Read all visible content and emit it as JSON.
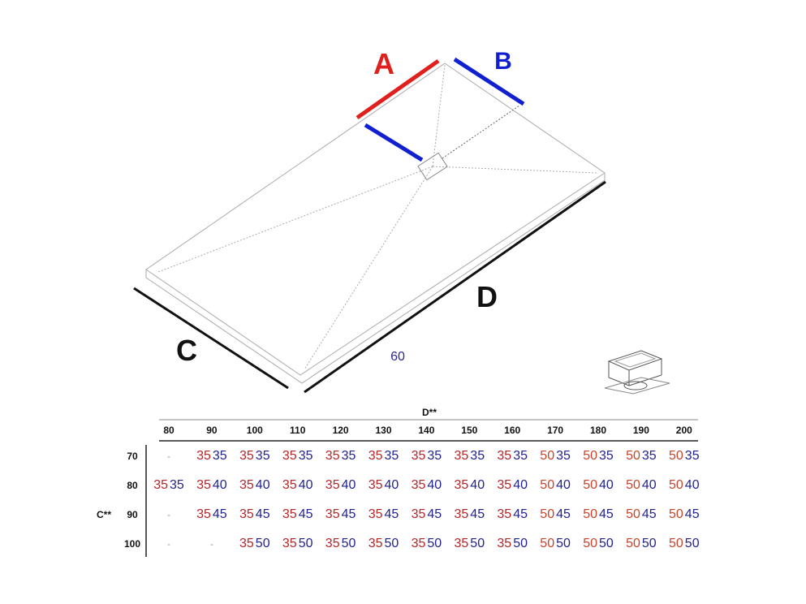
{
  "diagram": {
    "labels": {
      "a": "A",
      "b": "B",
      "c": "C",
      "d": "D"
    },
    "note": "60",
    "colors": {
      "a": "#e0201c",
      "b": "#1020d0",
      "c": "#111111",
      "d": "#111111",
      "note": "#2a2a8a"
    }
  },
  "table": {
    "column_header_title": "D**",
    "row_header_title": "C**",
    "columns": [
      "80",
      "90",
      "100",
      "110",
      "120",
      "130",
      "140",
      "150",
      "160",
      "170",
      "180",
      "190",
      "200"
    ],
    "rows": [
      {
        "c": "70",
        "cells": [
          null,
          [
            "35",
            "35"
          ],
          [
            "35",
            "35"
          ],
          [
            "35",
            "35"
          ],
          [
            "35",
            "35"
          ],
          [
            "35",
            "35"
          ],
          [
            "35",
            "35"
          ],
          [
            "35",
            "35"
          ],
          [
            "35",
            "35"
          ],
          [
            "50",
            "35"
          ],
          [
            "50",
            "35"
          ],
          [
            "50",
            "35"
          ],
          [
            "50",
            "35"
          ]
        ]
      },
      {
        "c": "80",
        "cells": [
          [
            "35",
            "35"
          ],
          [
            "35",
            "40"
          ],
          [
            "35",
            "40"
          ],
          [
            "35",
            "40"
          ],
          [
            "35",
            "40"
          ],
          [
            "35",
            "40"
          ],
          [
            "35",
            "40"
          ],
          [
            "35",
            "40"
          ],
          [
            "35",
            "40"
          ],
          [
            "50",
            "40"
          ],
          [
            "50",
            "40"
          ],
          [
            "50",
            "40"
          ],
          [
            "50",
            "40"
          ]
        ]
      },
      {
        "c": "90",
        "cells": [
          null,
          [
            "35",
            "45"
          ],
          [
            "35",
            "45"
          ],
          [
            "35",
            "45"
          ],
          [
            "35",
            "45"
          ],
          [
            "35",
            "45"
          ],
          [
            "35",
            "45"
          ],
          [
            "35",
            "45"
          ],
          [
            "35",
            "45"
          ],
          [
            "50",
            "45"
          ],
          [
            "50",
            "45"
          ],
          [
            "50",
            "45"
          ],
          [
            "50",
            "45"
          ]
        ]
      },
      {
        "c": "100",
        "cells": [
          null,
          null,
          [
            "35",
            "50"
          ],
          [
            "35",
            "50"
          ],
          [
            "35",
            "50"
          ],
          [
            "35",
            "50"
          ],
          [
            "35",
            "50"
          ],
          [
            "35",
            "50"
          ],
          [
            "35",
            "50"
          ],
          [
            "50",
            "50"
          ],
          [
            "50",
            "50"
          ],
          [
            "50",
            "50"
          ],
          [
            "50",
            "50"
          ]
        ]
      }
    ],
    "empty_mark": "-",
    "colors": {
      "a35": "#b5262a",
      "a50": "#c8442a",
      "b": "#23238f"
    }
  }
}
